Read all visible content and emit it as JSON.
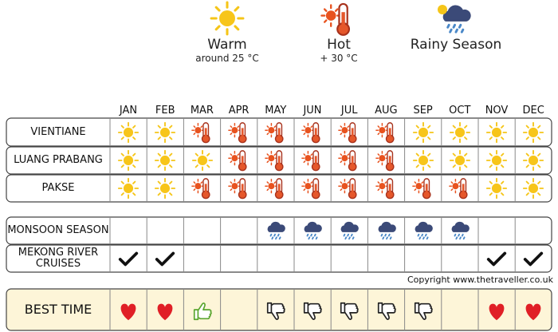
{
  "legend": [
    {
      "label": "Warm",
      "note": "around 25 °C"
    },
    {
      "label": "Hot",
      "note": "+ 30 °C"
    },
    {
      "label": "Rainy Season"
    }
  ],
  "table": {
    "months": [
      "JAN",
      "FEB",
      "MAR",
      "APR",
      "MAY",
      "JUN",
      "JUL",
      "AUG",
      "SEP",
      "OCT",
      "NOV",
      "DEC"
    ],
    "rows": [
      {
        "label": "VIENTIANE"
      },
      {
        "label": "LUANG PRABANG"
      },
      {
        "label": "PAKSE"
      },
      {
        "label": "MONSOON SEASON"
      },
      {
        "label": "MEKONG RIVER CRUISES"
      },
      {
        "label": "BEST TIME"
      }
    ]
  },
  "copyright": "Copyright www.thetraveller.co.uk"
}
